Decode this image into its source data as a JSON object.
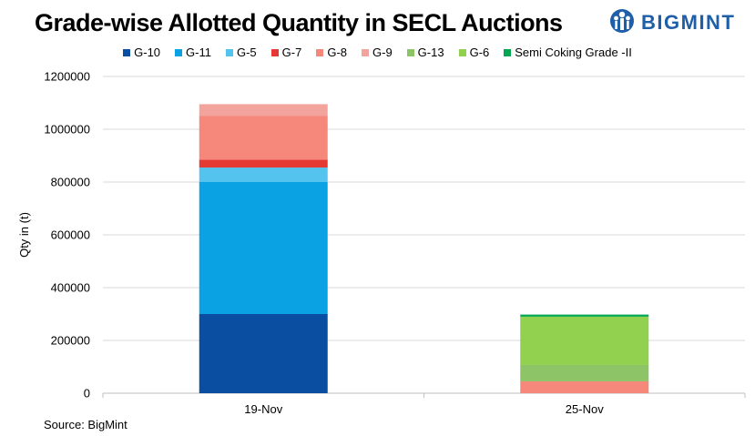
{
  "title": "Grade-wise Allotted Quantity in SECL Auctions",
  "logo": {
    "text": "BIGMINT",
    "color": "#1f5fa8"
  },
  "source": "Source: BigMint",
  "chart_data": {
    "type": "bar",
    "stacked": true,
    "categories": [
      "19-Nov",
      "25-Nov"
    ],
    "series": [
      {
        "name": "G-10",
        "color": "#0a4ea1",
        "values": [
          300000,
          0
        ]
      },
      {
        "name": "G-11",
        "color": "#0aa2e3",
        "values": [
          500000,
          0
        ]
      },
      {
        "name": "G-5",
        "color": "#54c4ef",
        "values": [
          55000,
          0
        ]
      },
      {
        "name": "G-7",
        "color": "#e53a33",
        "values": [
          30000,
          0
        ]
      },
      {
        "name": "G-8",
        "color": "#f5877b",
        "values": [
          165000,
          45000
        ]
      },
      {
        "name": "G-9",
        "color": "#f2a39c",
        "values": [
          45000,
          0
        ]
      },
      {
        "name": "G-13",
        "color": "#8cc467",
        "values": [
          0,
          62000
        ]
      },
      {
        "name": "G-6",
        "color": "#92d050",
        "values": [
          0,
          183000
        ]
      },
      {
        "name": "Semi Coking Grade -II",
        "color": "#00a651",
        "values": [
          0,
          8000
        ]
      }
    ],
    "xlabel": "",
    "ylabel": "Qty in (t)",
    "ylim": [
      0,
      1200000
    ],
    "yticks": [
      0,
      200000,
      400000,
      600000,
      800000,
      1000000,
      1200000
    ],
    "grid": true,
    "legend_position": "top"
  }
}
